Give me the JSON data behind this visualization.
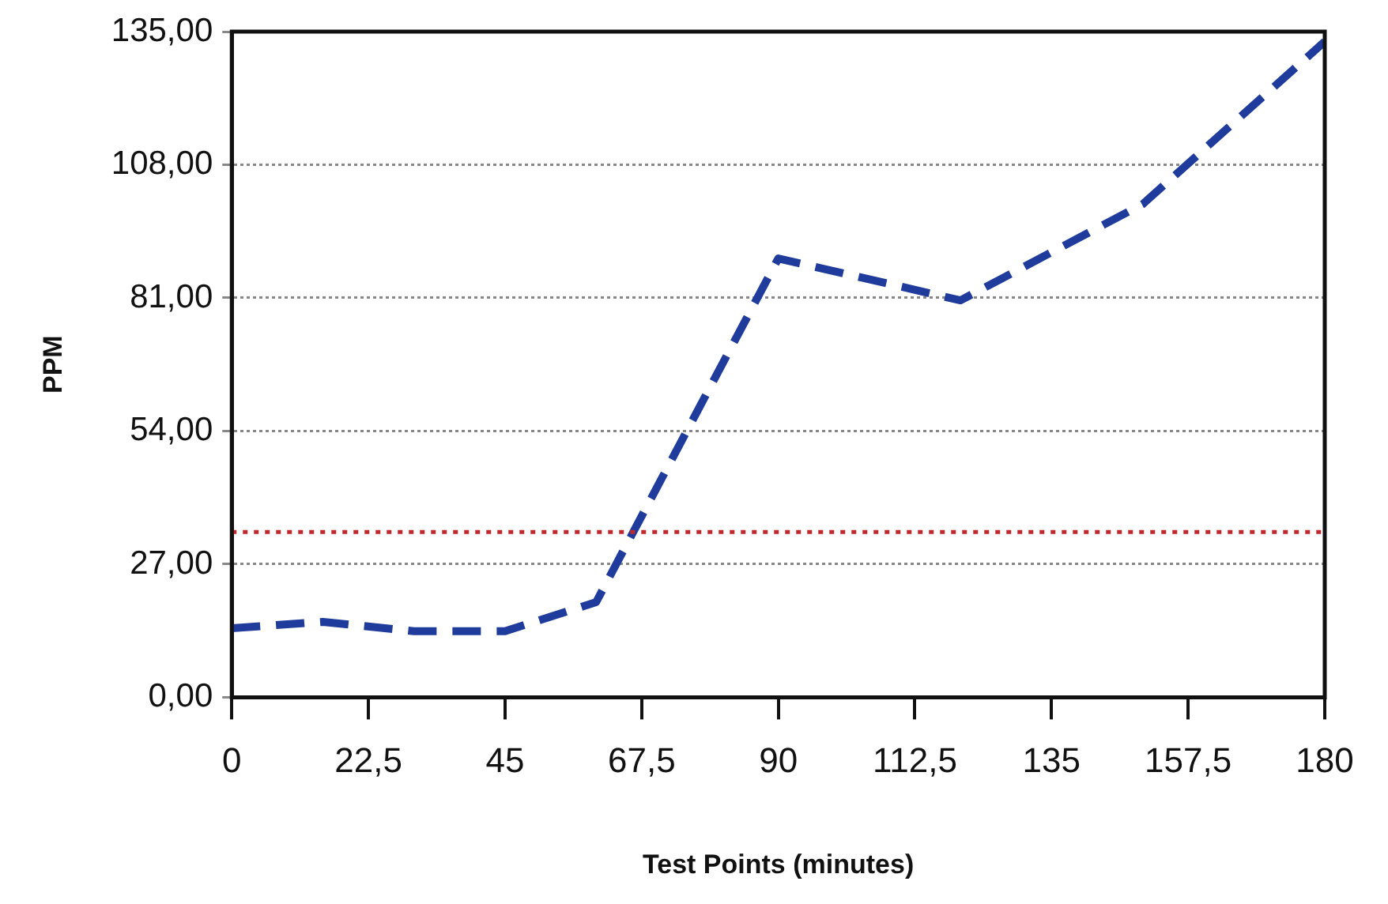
{
  "chart_data": {
    "type": "line",
    "xlabel": "Test Points (minutes)",
    "ylabel": "PPM",
    "x": [
      0,
      15,
      30,
      45,
      60,
      90,
      120,
      150,
      180
    ],
    "series": [
      {
        "color": "#1f3c9c",
        "values": [
          14,
          15.3,
          13.4,
          13.4,
          19.3,
          89,
          80.5,
          100,
          133
        ]
      }
    ],
    "xlim": [
      0,
      180
    ],
    "xticks": [
      0,
      {
        "value": 22.5,
        "label": "22,5"
      },
      45,
      {
        "value": 67.5,
        "label": "67,5"
      },
      90,
      {
        "value": 112.5,
        "label": "112,5"
      },
      135,
      {
        "value": 157.5,
        "label": "157,5"
      },
      180
    ],
    "ylim": [
      0,
      135
    ],
    "yticks": [
      {
        "value": 0,
        "label": "0,00"
      },
      {
        "value": 27,
        "label": "27,00"
      },
      {
        "value": 54,
        "label": "54,00"
      },
      {
        "value": 81,
        "label": "81,00"
      },
      {
        "value": 108,
        "label": "108,00"
      },
      {
        "value": 135,
        "label": "135,00"
      }
    ],
    "ref_lines": [
      {
        "axis": "y",
        "value": 33.5,
        "color": "#c0282d",
        "line_style": "dotted"
      }
    ],
    "grid": "y",
    "legend": false,
    "marker": "none",
    "line_style": "dashed"
  }
}
